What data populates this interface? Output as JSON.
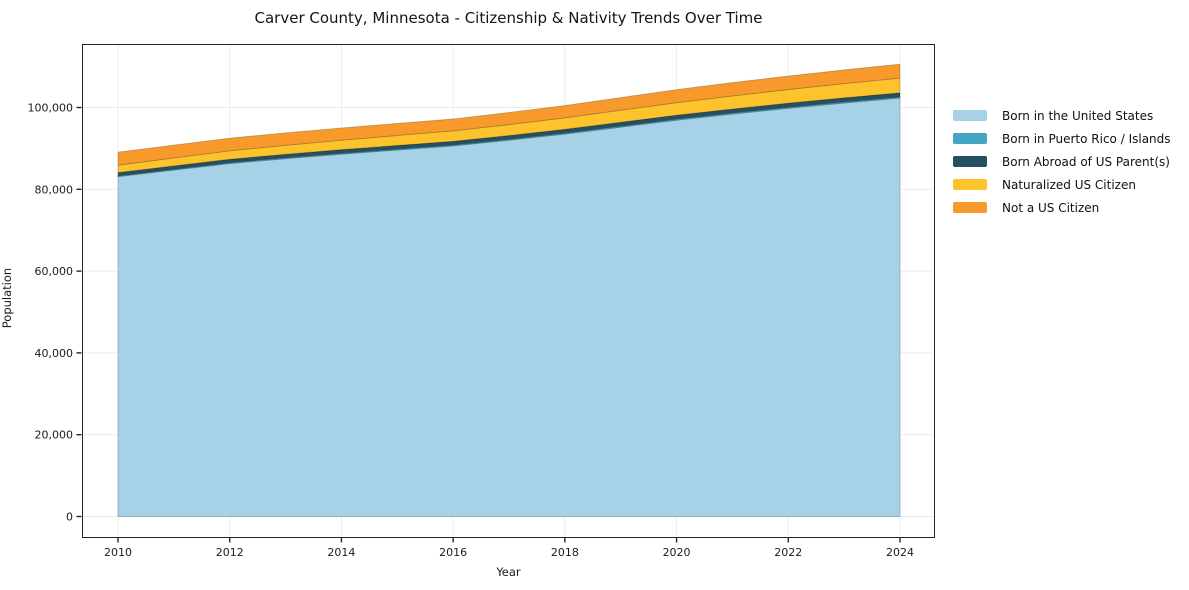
{
  "chart_data": {
    "type": "area",
    "stacked": true,
    "title": "Carver County, Minnesota - Citizenship & Nativity Trends Over Time",
    "xlabel": "Year",
    "ylabel": "Population",
    "x": [
      2010,
      2011,
      2012,
      2013,
      2014,
      2015,
      2016,
      2017,
      2018,
      2019,
      2020,
      2021,
      2022,
      2023,
      2024
    ],
    "series": [
      {
        "name": "Born in the United States",
        "color": "#a7d1e6",
        "values": [
          83100,
          84700,
          86300,
          87500,
          88600,
          89600,
          90600,
          92000,
          93500,
          95200,
          96900,
          98400,
          99800,
          101100,
          102300
        ]
      },
      {
        "name": "Born in Puerto Rico / Islands",
        "color": "#42a6c4",
        "values": [
          200,
          210,
          220,
          230,
          240,
          250,
          250,
          260,
          260,
          270,
          280,
          280,
          290,
          290,
          300
        ]
      },
      {
        "name": "Born Abroad of US Parent(s)",
        "color": "#26505f",
        "values": [
          800,
          820,
          830,
          850,
          860,
          880,
          890,
          900,
          920,
          930,
          950,
          960,
          980,
          990,
          1000
        ]
      },
      {
        "name": "Naturalized US Citizen",
        "color": "#fcc32d",
        "values": [
          1800,
          1930,
          2050,
          2180,
          2300,
          2430,
          2550,
          2680,
          2800,
          2930,
          3050,
          3190,
          3330,
          3470,
          3600
        ]
      },
      {
        "name": "Not a US Citizen",
        "color": "#f8992c",
        "values": [
          3200,
          3150,
          3100,
          3050,
          3000,
          2950,
          2900,
          2950,
          3000,
          3100,
          3200,
          3250,
          3300,
          3350,
          3400
        ]
      }
    ],
    "xticks": [
      2010,
      2012,
      2014,
      2016,
      2018,
      2020,
      2022,
      2024
    ],
    "xtick_labels": [
      "2010",
      "2012",
      "2014",
      "2016",
      "2018",
      "2020",
      "2022",
      "2024"
    ],
    "yticks": [
      0,
      20000,
      40000,
      60000,
      80000,
      100000
    ],
    "ytick_labels": [
      "0",
      "20,000",
      "40,000",
      "60,000",
      "80,000",
      "100,000"
    ],
    "grid": true,
    "legend_position": "right",
    "colors": {
      "grid": "#ececec",
      "frame": "#262626",
      "text": "#1c1c1c",
      "band_edge": "rgba(0,0,0,0.22)"
    }
  }
}
